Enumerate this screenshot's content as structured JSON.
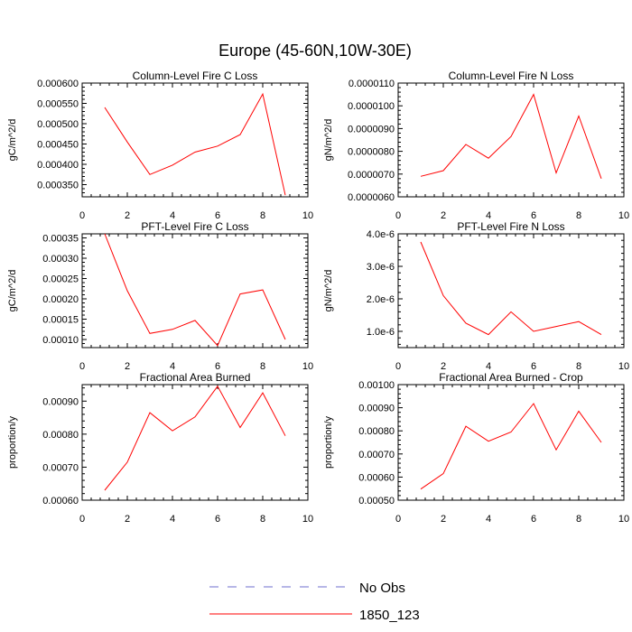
{
  "title": "Europe (45-60N,10W-30E)",
  "colors": {
    "series": "#ff0000",
    "obs": "#6f6fcf",
    "axis": "#000000"
  },
  "legend": {
    "placement": "bottom-center",
    "items": [
      {
        "label": "No Obs",
        "style": "dashed",
        "color": "#6f6fcf"
      },
      {
        "label": "1850_123",
        "style": "solid",
        "color": "#ff0000"
      }
    ]
  },
  "chart_data": [
    {
      "type": "line",
      "title": "Column-Level Fire C Loss",
      "ylabel": "gC/m^2/d",
      "xlim": [
        0,
        10
      ],
      "xticks": [
        "0",
        "2",
        "4",
        "6",
        "8",
        "10"
      ],
      "ylim": [
        0.00032,
        0.0006
      ],
      "yticks": [
        0.00035,
        0.0004,
        0.00045,
        0.0005,
        0.00055,
        0.0006
      ],
      "ytick_labels": [
        "0.000350",
        "0.000400",
        "0.000450",
        "0.000500",
        "0.000550",
        "0.000600"
      ],
      "series": [
        {
          "name": "1850_123",
          "x": [
            1,
            2,
            3,
            4,
            5,
            6,
            7,
            8,
            9
          ],
          "values": [
            0.00054,
            0.000455,
            0.000375,
            0.000398,
            0.00043,
            0.000445,
            0.000473,
            0.000573,
            0.000324
          ]
        }
      ]
    },
    {
      "type": "line",
      "title": "Column-Level Fire N Loss",
      "ylabel": "gN/m^2/d",
      "xlim": [
        0,
        10
      ],
      "xticks": [
        "0",
        "2",
        "4",
        "6",
        "8",
        "10"
      ],
      "ylim": [
        6e-06,
        1.1e-05
      ],
      "yticks": [
        6e-06,
        7e-06,
        8e-06,
        9e-06,
        1e-05,
        1.1e-05
      ],
      "ytick_labels": [
        "0.0000060",
        "0.0000070",
        "0.0000080",
        "0.0000090",
        "0.0000100",
        "0.0000110"
      ],
      "series": [
        {
          "name": "1850_123",
          "x": [
            1,
            2,
            3,
            4,
            5,
            6,
            7,
            8,
            9
          ],
          "values": [
            6.9e-06,
            7.15e-06,
            8.3e-06,
            7.7e-06,
            8.65e-06,
            1.05e-05,
            7.05e-06,
            9.55e-06,
            6.8e-06
          ]
        }
      ]
    },
    {
      "type": "line",
      "title": "PFT-Level Fire C Loss",
      "ylabel": "gC/m^2/d",
      "xlim": [
        0,
        10
      ],
      "xticks": [
        "0",
        "2",
        "4",
        "6",
        "8",
        "10"
      ],
      "ylim": [
        8e-05,
        0.00036
      ],
      "yticks": [
        0.0001,
        0.00015,
        0.0002,
        0.00025,
        0.0003,
        0.00035
      ],
      "ytick_labels": [
        "0.00010",
        "0.00015",
        "0.00020",
        "0.00025",
        "0.00030",
        "0.00035"
      ],
      "series": [
        {
          "name": "1850_123",
          "x": [
            1,
            2,
            3,
            4,
            5,
            6,
            7,
            8,
            9
          ],
          "values": [
            0.00036,
            0.00022,
            0.000115,
            0.000125,
            0.000147,
            8.5e-05,
            0.000212,
            0.000222,
            0.0001
          ]
        }
      ]
    },
    {
      "type": "line",
      "title": "PFT-Level Fire N Loss",
      "ylabel": "gN/m^2/d",
      "xlim": [
        0,
        10
      ],
      "xticks": [
        "0",
        "2",
        "4",
        "6",
        "8",
        "10"
      ],
      "ylim": [
        5e-07,
        4e-06
      ],
      "yticks": [
        1e-06,
        2e-06,
        3e-06,
        4e-06
      ],
      "ytick_labels": [
        "1.0e-6",
        "2.0e-6",
        "3.0e-6",
        "4.0e-6"
      ],
      "series": [
        {
          "name": "1850_123",
          "x": [
            1,
            2,
            3,
            4,
            5,
            6,
            7,
            8,
            9
          ],
          "values": [
            3.75e-06,
            2.1e-06,
            1.25e-06,
            9e-07,
            1.6e-06,
            1e-06,
            1.15e-06,
            1.3e-06,
            9e-07
          ]
        }
      ]
    },
    {
      "type": "line",
      "title": "Fractional Area Burned",
      "ylabel": "proportion/y",
      "xlim": [
        0,
        10
      ],
      "xticks": [
        "0",
        "2",
        "4",
        "6",
        "8",
        "10"
      ],
      "ylim": [
        0.0006,
        0.00095
      ],
      "yticks": [
        0.0006,
        0.0007,
        0.0008,
        0.0009
      ],
      "ytick_labels": [
        "0.00060",
        "0.00070",
        "0.00080",
        "0.00090"
      ],
      "series": [
        {
          "name": "1850_123",
          "x": [
            1,
            2,
            3,
            4,
            5,
            6,
            7,
            8,
            9
          ],
          "values": [
            0.00063,
            0.000715,
            0.000865,
            0.00081,
            0.000852,
            0.000945,
            0.00082,
            0.000925,
            0.000795
          ]
        }
      ]
    },
    {
      "type": "line",
      "title": "Fractional Area Burned - Crop",
      "ylabel": "proportion/y",
      "xlim": [
        0,
        10
      ],
      "xticks": [
        "0",
        "2",
        "4",
        "6",
        "8",
        "10"
      ],
      "ylim": [
        0.0005,
        0.001
      ],
      "yticks": [
        0.0005,
        0.0006,
        0.0007,
        0.0008,
        0.0009,
        0.001
      ],
      "ytick_labels": [
        "0.00050",
        "0.00060",
        "0.00070",
        "0.00080",
        "0.00090",
        "0.00100"
      ],
      "series": [
        {
          "name": "1850_123",
          "x": [
            1,
            2,
            3,
            4,
            5,
            6,
            7,
            8,
            9
          ],
          "values": [
            0.000548,
            0.000615,
            0.00082,
            0.000755,
            0.000795,
            0.000918,
            0.000718,
            0.000885,
            0.00075
          ]
        }
      ]
    }
  ]
}
